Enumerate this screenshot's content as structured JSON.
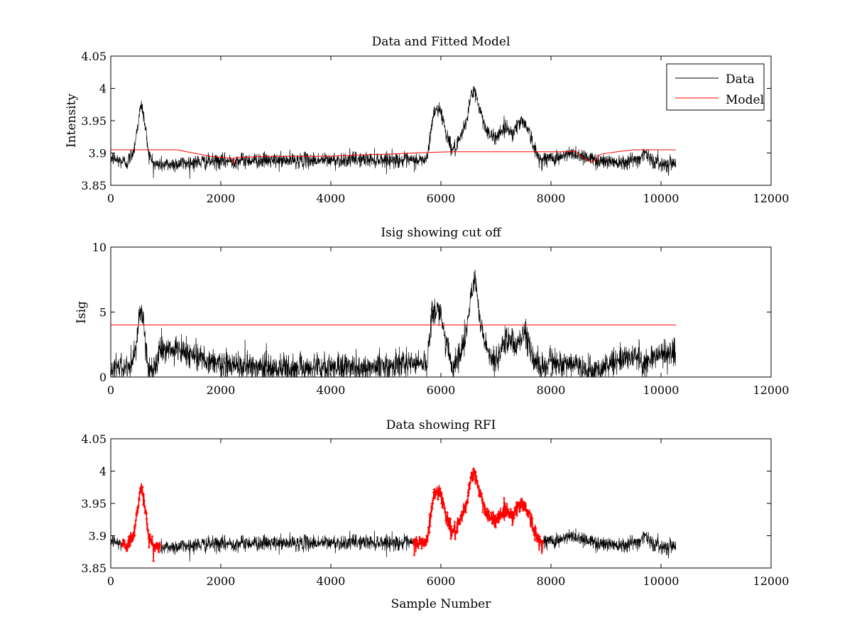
{
  "chart_data": [
    {
      "type": "line",
      "title": "Data and Fitted Model",
      "xlabel": "",
      "ylabel": "Intensity",
      "xlim": [
        0,
        12000
      ],
      "ylim": [
        3.85,
        4.05
      ],
      "xticks": [
        0,
        2000,
        4000,
        6000,
        8000,
        10000,
        12000
      ],
      "yticks": [
        3.85,
        3.9,
        3.95,
        4.0,
        4.05
      ],
      "xtick_labels": [
        "0",
        "2000",
        "4000",
        "6000",
        "8000",
        "10000",
        "12000"
      ],
      "ytick_labels": [
        "3.85",
        "3.9",
        "3.95",
        "4",
        "4.05"
      ],
      "grid": false,
      "legend": {
        "placement": "top-right",
        "entries": [
          "Data",
          "Model"
        ]
      },
      "series": [
        {
          "name": "Data",
          "color": "#000000",
          "style": "noisy-line",
          "x": [
            0,
            150,
            300,
            420,
            520,
            560,
            610,
            700,
            800,
            1000,
            1300,
            1600,
            2000,
            2500,
            3000,
            3500,
            4000,
            4500,
            5000,
            5500,
            5750,
            5850,
            5930,
            6000,
            6100,
            6200,
            6300,
            6450,
            6550,
            6620,
            6700,
            6800,
            6900,
            7000,
            7100,
            7200,
            7300,
            7400,
            7500,
            7600,
            7700,
            7800,
            8000,
            8200,
            8400,
            8600,
            8800,
            9000,
            9300,
            9600,
            9700,
            9800,
            10000,
            10270
          ],
          "values": [
            3.893,
            3.888,
            3.885,
            3.905,
            3.96,
            3.975,
            3.95,
            3.895,
            3.882,
            3.882,
            3.884,
            3.886,
            3.887,
            3.889,
            3.888,
            3.889,
            3.889,
            3.89,
            3.89,
            3.888,
            3.89,
            3.955,
            3.97,
            3.965,
            3.93,
            3.905,
            3.91,
            3.945,
            3.99,
            3.995,
            3.97,
            3.942,
            3.925,
            3.925,
            3.935,
            3.94,
            3.93,
            3.945,
            3.95,
            3.935,
            3.905,
            3.89,
            3.892,
            3.894,
            3.9,
            3.895,
            3.889,
            3.887,
            3.887,
            3.89,
            3.903,
            3.89,
            3.883,
            3.885
          ],
          "noise": 0.006
        },
        {
          "name": "Model",
          "color": "#ff0000",
          "style": "line",
          "x": [
            0,
            1200,
            1500,
            1800,
            2200,
            2230,
            2250,
            2300,
            2800,
            3300,
            4000,
            4500,
            5000,
            5500,
            5800,
            6200,
            6600,
            7000,
            7500,
            8000,
            8300,
            8450,
            8550,
            8750,
            8800,
            8900,
            9200,
            9500,
            10270
          ],
          "values": [
            3.905,
            3.905,
            3.9,
            3.895,
            3.892,
            3.884,
            3.892,
            3.893,
            3.895,
            3.895,
            3.895,
            3.897,
            3.898,
            3.9,
            3.901,
            3.902,
            3.902,
            3.902,
            3.902,
            3.902,
            3.902,
            3.903,
            3.895,
            3.885,
            3.89,
            3.898,
            3.902,
            3.905,
            3.905
          ]
        }
      ]
    },
    {
      "type": "line",
      "title": "Isig showing cut off",
      "xlabel": "",
      "ylabel": "Isig",
      "xlim": [
        0,
        12000
      ],
      "ylim": [
        0,
        10
      ],
      "xticks": [
        0,
        2000,
        4000,
        6000,
        8000,
        10000,
        12000
      ],
      "yticks": [
        0,
        5,
        10
      ],
      "xtick_labels": [
        "0",
        "2000",
        "4000",
        "6000",
        "8000",
        "10000",
        "12000"
      ],
      "ytick_labels": [
        "0",
        "5",
        "10"
      ],
      "grid": false,
      "series": [
        {
          "color": "#000000",
          "style": "noisy-line",
          "x": [
            0,
            200,
            400,
            500,
            550,
            600,
            680,
            750,
            900,
            1200,
            1500,
            1800,
            2000,
            2500,
            3000,
            3500,
            4000,
            4500,
            5000,
            5500,
            5750,
            5820,
            5900,
            6000,
            6100,
            6200,
            6300,
            6450,
            6550,
            6620,
            6700,
            6800,
            6900,
            7000,
            7100,
            7200,
            7300,
            7400,
            7500,
            7600,
            7700,
            7800,
            8000,
            8200,
            8400,
            8600,
            8800,
            9000,
            9300,
            9600,
            9700,
            9800,
            10000,
            10270
          ],
          "values": [
            0.6,
            0.8,
            1.0,
            4.0,
            5.3,
            4.0,
            0.4,
            0.5,
            2.0,
            2.0,
            1.8,
            1.2,
            0.9,
            0.8,
            0.7,
            0.7,
            0.7,
            0.7,
            0.8,
            1.0,
            1.2,
            4.5,
            5.3,
            4.8,
            2.5,
            0.6,
            1.5,
            3.0,
            6.5,
            7.6,
            5.0,
            2.5,
            1.5,
            1.0,
            2.5,
            3.2,
            2.8,
            2.5,
            3.5,
            2.8,
            1.0,
            0.7,
            1.2,
            0.8,
            1.3,
            0.7,
            0.3,
            0.9,
            1.4,
            1.6,
            0.8,
            1.4,
            1.8,
            1.8
          ],
          "noise": 0.55
        },
        {
          "name": "cut off",
          "color": "#ff0000",
          "style": "line",
          "x": [
            0,
            10270
          ],
          "values": [
            4,
            4
          ]
        }
      ]
    },
    {
      "type": "line",
      "title": "Data showing RFI",
      "xlabel": "Sample Number",
      "ylabel": "",
      "xlim": [
        0,
        12000
      ],
      "ylim": [
        3.85,
        4.05
      ],
      "xticks": [
        0,
        2000,
        4000,
        6000,
        8000,
        10000,
        12000
      ],
      "yticks": [
        3.85,
        3.9,
        3.95,
        4.0,
        4.05
      ],
      "xtick_labels": [
        "0",
        "2000",
        "4000",
        "6000",
        "8000",
        "10000",
        "12000"
      ],
      "ytick_labels": [
        "3.85",
        "3.9",
        "3.95",
        "4",
        "4.05"
      ],
      "grid": false,
      "rfi_ranges": [
        [
          200,
          900
        ],
        [
          5500,
          7850
        ]
      ],
      "rfi_color": "#ff0000",
      "data_color": "#000000"
    }
  ]
}
